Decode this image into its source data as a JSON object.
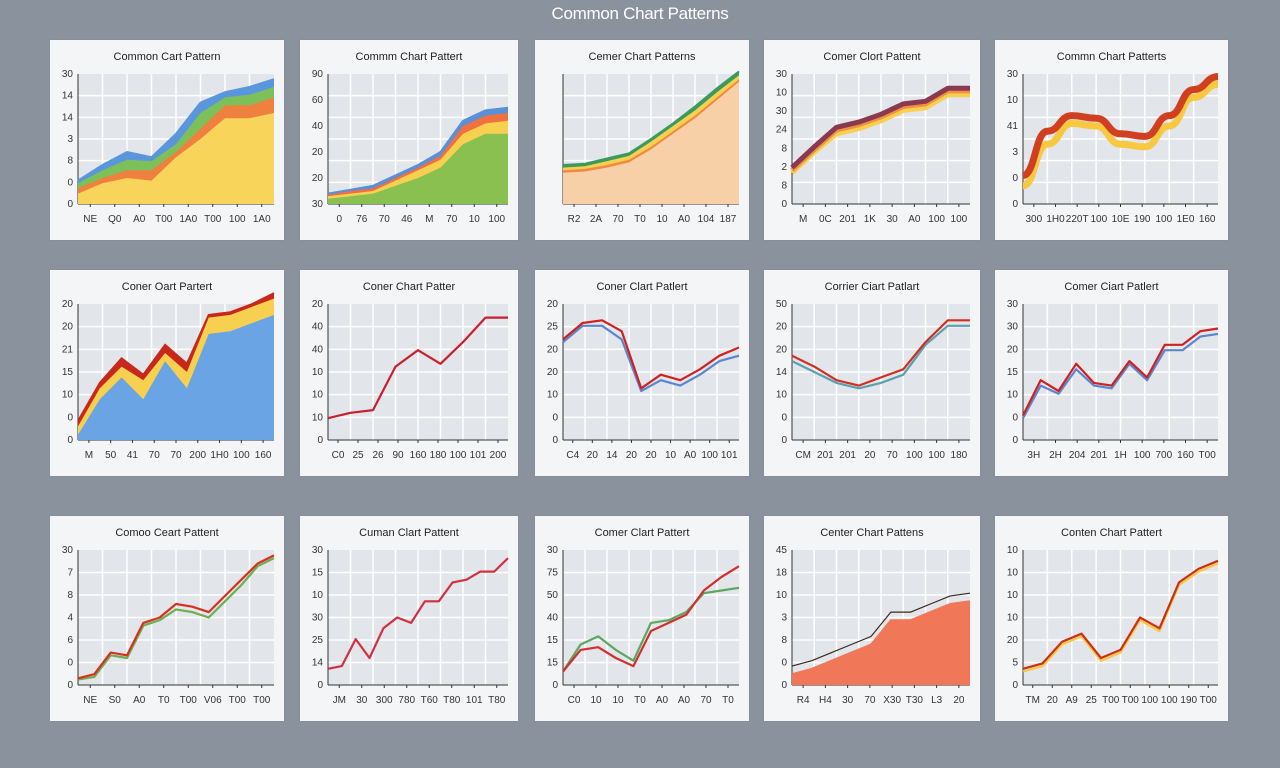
{
  "page": {
    "title": "Common Chart Patterns"
  },
  "chart_data": [
    {
      "type": "area",
      "title": "Common Cart Pattern",
      "ylabels": [
        "0",
        "0",
        "8",
        "3",
        "14",
        "14",
        "30"
      ],
      "xlabels": [
        "NE",
        "Q0",
        "A0",
        "T00",
        "1A0",
        "T00",
        "100",
        "1A0"
      ],
      "ylim": [
        0,
        100
      ],
      "series": [
        {
          "name": "yellow",
          "color": "#f8d55a",
          "values": [
            8,
            16,
            20,
            18,
            36,
            50,
            66,
            66,
            70
          ]
        },
        {
          "name": "orange",
          "color": "#f08040",
          "values": [
            12,
            20,
            26,
            26,
            40,
            58,
            76,
            76,
            82
          ]
        },
        {
          "name": "green",
          "color": "#7cc05a",
          "values": [
            16,
            26,
            34,
            33,
            46,
            70,
            82,
            84,
            90
          ]
        },
        {
          "name": "blue",
          "color": "#5a96dc",
          "values": [
            18,
            30,
            40,
            36,
            54,
            78,
            86,
            90,
            96
          ]
        }
      ]
    },
    {
      "type": "area",
      "title": "Commm Chart Pattert",
      "ylabels": [
        "30",
        "20",
        "20",
        "40",
        "60",
        "90"
      ],
      "xlabels": [
        "0",
        "76",
        "70",
        "46",
        "M",
        "70",
        "10",
        "100"
      ],
      "ylim": [
        0,
        100
      ],
      "series": [
        {
          "name": "green",
          "color": "#8ac050",
          "values": [
            4,
            6,
            8,
            14,
            20,
            28,
            46,
            54,
            54
          ]
        },
        {
          "name": "yellow",
          "color": "#f8d050",
          "values": [
            6,
            8,
            10,
            18,
            26,
            34,
            54,
            62,
            64
          ]
        },
        {
          "name": "orange",
          "color": "#f07040",
          "values": [
            7,
            10,
            12,
            20,
            28,
            37,
            60,
            68,
            70
          ]
        },
        {
          "name": "blue",
          "color": "#5a90d8",
          "values": [
            8,
            11,
            14,
            22,
            30,
            40,
            64,
            72,
            74
          ]
        }
      ]
    },
    {
      "type": "area",
      "title": "Cemer Chart Patterns",
      "ylabels": [],
      "xlabels": [
        "R2",
        "2A",
        "70",
        "T0",
        "10",
        "A0",
        "104",
        "187"
      ],
      "ylim": [
        0,
        100
      ],
      "series": [
        {
          "name": "peach",
          "color": "#f8d0a8",
          "values": [
            24,
            25,
            28,
            32,
            42,
            54,
            66,
            80,
            94
          ]
        },
        {
          "name": "orange",
          "color": "#f08a40",
          "values": [
            26,
            27,
            30,
            34,
            44,
            56,
            68,
            82,
            96
          ]
        },
        {
          "name": "yellow",
          "color": "#f8d050",
          "values": [
            28,
            29,
            33,
            37,
            48,
            60,
            72,
            86,
            99
          ]
        },
        {
          "name": "green",
          "color": "#3a9a60",
          "values": [
            30,
            31,
            35,
            39,
            50,
            62,
            75,
            89,
            102
          ]
        }
      ]
    },
    {
      "type": "line-band",
      "title": "Comer Clort Pattent",
      "ylabels": [
        "0",
        "8",
        "2",
        "8",
        "24",
        "30",
        "10",
        "30"
      ],
      "xlabels": [
        "M",
        "0C",
        "201",
        "1K",
        "30",
        "A0",
        "100",
        "100"
      ],
      "ylim": [
        0,
        100
      ],
      "series": [
        {
          "name": "yellow",
          "color": "#f8d050",
          "values": [
            24,
            40,
            54,
            58,
            64,
            72,
            74,
            84,
            84
          ]
        },
        {
          "name": "orange",
          "color": "#f09040",
          "values": [
            26,
            42,
            57,
            61,
            67,
            75,
            77,
            87,
            87
          ]
        },
        {
          "name": "maroon",
          "color": "#8a3a50",
          "values": [
            28,
            44,
            59,
            63,
            69,
            77,
            79,
            89,
            89
          ]
        }
      ]
    },
    {
      "type": "line-band",
      "title": "Commn Chart Patterts",
      "ylabels": [
        "0",
        "0",
        "3",
        "41",
        "10",
        "30"
      ],
      "xlabels": [
        "300",
        "1H0",
        "220T",
        "100",
        "10E",
        "190",
        "100",
        "1E0",
        "160"
      ],
      "ylim": [
        0,
        100
      ],
      "series": [
        {
          "name": "yellow",
          "color": "#f8c840",
          "values": [
            14,
            46,
            62,
            60,
            46,
            44,
            60,
            82,
            92
          ]
        },
        {
          "name": "red",
          "color": "#d04020",
          "values": [
            22,
            56,
            68,
            66,
            54,
            52,
            68,
            88,
            98
          ]
        }
      ]
    },
    {
      "type": "area",
      "title": "Coner Oart Partert",
      "ylabels": [
        "0",
        "0",
        "10",
        "15",
        "21",
        "20",
        "20"
      ],
      "xlabels": [
        "M",
        "50",
        "41",
        "70",
        "70",
        "200",
        "1H0",
        "100",
        "160"
      ],
      "ylim": [
        0,
        100
      ],
      "series": [
        {
          "name": "blue",
          "color": "#6aa4e4",
          "values": [
            4,
            30,
            46,
            30,
            58,
            38,
            78,
            80,
            86,
            92
          ]
        },
        {
          "name": "yellow",
          "color": "#f8d050",
          "values": [
            10,
            38,
            54,
            44,
            64,
            50,
            90,
            92,
            98,
            104
          ]
        },
        {
          "name": "red",
          "color": "#c8281c",
          "values": [
            14,
            42,
            60,
            48,
            70,
            56,
            92,
            94,
            100,
            108
          ]
        }
      ]
    },
    {
      "type": "line",
      "title": "Coner Chart Patter",
      "ylabels": [
        "0",
        "10",
        "10",
        "10",
        "40",
        "40",
        "20"
      ],
      "xlabels": [
        "C0",
        "25",
        "26",
        "90",
        "160",
        "180",
        "100",
        "101",
        "200"
      ],
      "ylim": [
        0,
        100
      ],
      "series": [
        {
          "name": "red",
          "color": "#c82030",
          "values": [
            16,
            20,
            22,
            54,
            66,
            56,
            72,
            90,
            90
          ]
        }
      ]
    },
    {
      "type": "line",
      "title": "Coner Clart Patlert",
      "ylabels": [
        "0",
        "0",
        "10",
        "20",
        "20",
        "25",
        "20"
      ],
      "xlabels": [
        "C4",
        "20",
        "14",
        "20",
        "20",
        "10",
        "A0",
        "100",
        "101"
      ],
      "ylim": [
        0,
        100
      ],
      "series": [
        {
          "name": "blue",
          "color": "#5a86d0",
          "values": [
            72,
            84,
            84,
            74,
            36,
            44,
            40,
            48,
            58,
            62
          ]
        },
        {
          "name": "red",
          "color": "#d02020",
          "values": [
            74,
            86,
            88,
            80,
            38,
            48,
            44,
            52,
            62,
            68
          ]
        }
      ]
    },
    {
      "type": "line",
      "title": "Corrier Ciart Patlart",
      "ylabels": [
        "0",
        "0",
        "10",
        "14",
        "20",
        "20",
        "50"
      ],
      "xlabels": [
        "CM",
        "201",
        "201",
        "20",
        "70",
        "100",
        "100",
        "180"
      ],
      "ylim": [
        0,
        100
      ],
      "series": [
        {
          "name": "teal",
          "color": "#5aa0b0",
          "values": [
            58,
            50,
            42,
            38,
            42,
            48,
            70,
            84,
            84
          ]
        },
        {
          "name": "red",
          "color": "#d03020",
          "values": [
            62,
            54,
            44,
            40,
            46,
            52,
            72,
            88,
            88
          ]
        }
      ]
    },
    {
      "type": "line",
      "title": "Comer Ciart Patlert",
      "ylabels": [
        "0",
        "0",
        "10",
        "15",
        "20",
        "30",
        "30"
      ],
      "xlabels": [
        "3H",
        "2H",
        "204",
        "201",
        "1H",
        "100",
        "700",
        "160",
        "T00"
      ],
      "ylim": [
        0,
        100
      ],
      "series": [
        {
          "name": "blue",
          "color": "#5a86d0",
          "values": [
            16,
            40,
            34,
            52,
            40,
            38,
            56,
            44,
            66,
            66,
            76,
            78
          ]
        },
        {
          "name": "red",
          "color": "#d02020",
          "values": [
            18,
            44,
            36,
            56,
            42,
            40,
            58,
            46,
            70,
            70,
            80,
            82
          ]
        }
      ]
    },
    {
      "type": "line",
      "title": "Comoo Ceart Pattent",
      "ylabels": [
        "0",
        "0",
        "6",
        "4",
        "8",
        "7",
        "30"
      ],
      "xlabels": [
        "NE",
        "S0",
        "A0",
        "T0",
        "T00",
        "V06",
        "T00",
        "T00"
      ],
      "ylim": [
        0,
        100
      ],
      "series": [
        {
          "name": "green",
          "color": "#6ab050",
          "values": [
            4,
            6,
            22,
            20,
            44,
            48,
            56,
            54,
            50,
            62,
            74,
            88,
            94
          ]
        },
        {
          "name": "red",
          "color": "#d83020",
          "values": [
            5,
            8,
            24,
            22,
            46,
            50,
            60,
            58,
            54,
            66,
            78,
            90,
            96
          ]
        }
      ]
    },
    {
      "type": "line",
      "title": "Cuman Clart Pattent",
      "ylabels": [
        "0",
        "14",
        "25",
        "30",
        "10",
        "15",
        "30"
      ],
      "xlabels": [
        "JM",
        "30",
        "300",
        "780",
        "T60",
        "T80",
        "101",
        "T80"
      ],
      "ylim": [
        0,
        100
      ],
      "series": [
        {
          "name": "red",
          "color": "#d03040",
          "values": [
            12,
            14,
            34,
            20,
            42,
            50,
            46,
            62,
            62,
            76,
            78,
            84,
            84,
            94
          ]
        }
      ]
    },
    {
      "type": "line",
      "title": "Comer Clart Pattert",
      "ylabels": [
        "0",
        "15",
        "15",
        "40",
        "50",
        "75",
        "30"
      ],
      "xlabels": [
        "C0",
        "10",
        "10",
        "T0",
        "A0",
        "A0",
        "70",
        "T0"
      ],
      "ylim": [
        0,
        100
      ],
      "series": [
        {
          "name": "green",
          "color": "#5aa860",
          "values": [
            10,
            30,
            36,
            26,
            18,
            46,
            48,
            54,
            68,
            70,
            72
          ]
        },
        {
          "name": "red",
          "color": "#d03030",
          "values": [
            10,
            26,
            28,
            20,
            14,
            40,
            46,
            52,
            70,
            80,
            88
          ]
        }
      ]
    },
    {
      "type": "step-area",
      "title": "Center Chart Pattens",
      "ylabels": [
        "0",
        "0",
        "8",
        "3",
        "10",
        "18",
        "45"
      ],
      "xlabels": [
        "R4",
        "H4",
        "30",
        "70",
        "X30",
        "T30",
        "L3",
        "20"
      ],
      "ylim": [
        0,
        100
      ],
      "series": [
        {
          "name": "salmon",
          "color": "#f07858",
          "values": [
            8,
            12,
            18,
            24,
            30,
            48,
            48,
            54,
            60,
            62
          ]
        }
      ]
    },
    {
      "type": "line",
      "title": "Conten Chart Pattert",
      "ylabels": [
        "0",
        "5",
        "20",
        "10",
        "10",
        "10",
        "10"
      ],
      "xlabels": [
        "TM",
        "20",
        "A9",
        "25",
        "T00",
        "T00",
        "100",
        "100",
        "190",
        "T00"
      ],
      "ylim": [
        0,
        100
      ],
      "series": [
        {
          "name": "yellow",
          "color": "#f8c840",
          "values": [
            10,
            14,
            30,
            36,
            18,
            24,
            48,
            40,
            74,
            84,
            90
          ]
        },
        {
          "name": "red",
          "color": "#c83018",
          "values": [
            12,
            16,
            32,
            38,
            20,
            26,
            50,
            42,
            76,
            86,
            92
          ]
        }
      ]
    }
  ]
}
